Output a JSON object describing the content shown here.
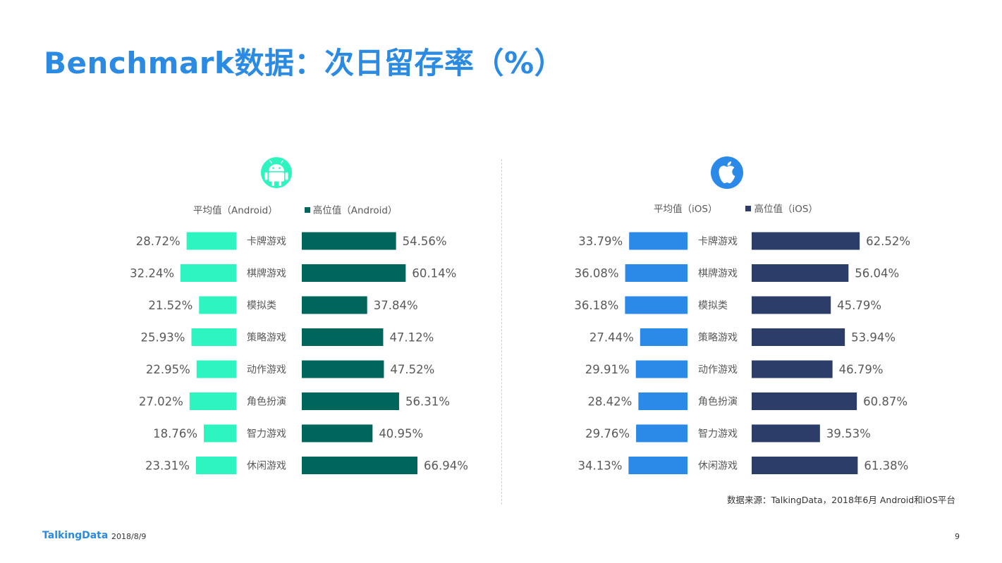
{
  "title": "Benchmark数据：次日留存率（%）",
  "footer": {
    "logo": "TalkingData",
    "date": "2018/8/9",
    "page_number": "9",
    "source": "数据来源：TalkingData，2018年6月 Android和iOS平台"
  },
  "icons": {
    "left": "android-icon",
    "right": "apple-icon"
  },
  "colors": {
    "android_avg": "#2ef5bf",
    "android_high": "#00655a",
    "ios_avg": "#2b8ae8",
    "ios_high": "#2d3d6a",
    "title": "#2b8ae2"
  },
  "chart_data": [
    {
      "type": "bar",
      "platform": "Android",
      "categories": [
        "卡牌游戏",
        "棋牌游戏",
        "模拟类",
        "策略游戏",
        "动作游戏",
        "角色扮演",
        "智力游戏",
        "休闲游戏"
      ],
      "series": [
        {
          "name": "平均值（Android）",
          "values": [
            28.72,
            32.24,
            21.52,
            25.93,
            22.95,
            27.02,
            18.76,
            23.31
          ]
        },
        {
          "name": "高位值（Android）",
          "values": [
            54.56,
            60.14,
            37.84,
            47.12,
            47.52,
            56.31,
            40.95,
            66.94
          ]
        }
      ],
      "value_suffix": "%",
      "legend_position": "top",
      "grid": false
    },
    {
      "type": "bar",
      "platform": "iOS",
      "categories": [
        "卡牌游戏",
        "棋牌游戏",
        "模拟类",
        "策略游戏",
        "动作游戏",
        "角色扮演",
        "智力游戏",
        "休闲游戏"
      ],
      "series": [
        {
          "name": "平均值（iOS）",
          "values": [
            33.79,
            36.08,
            36.18,
            27.44,
            29.91,
            28.42,
            29.76,
            34.13
          ]
        },
        {
          "name": "高位值（iOS）",
          "values": [
            62.52,
            56.04,
            45.79,
            53.94,
            46.79,
            60.87,
            39.53,
            61.38
          ]
        }
      ],
      "value_suffix": "%",
      "legend_position": "top",
      "grid": false
    }
  ]
}
